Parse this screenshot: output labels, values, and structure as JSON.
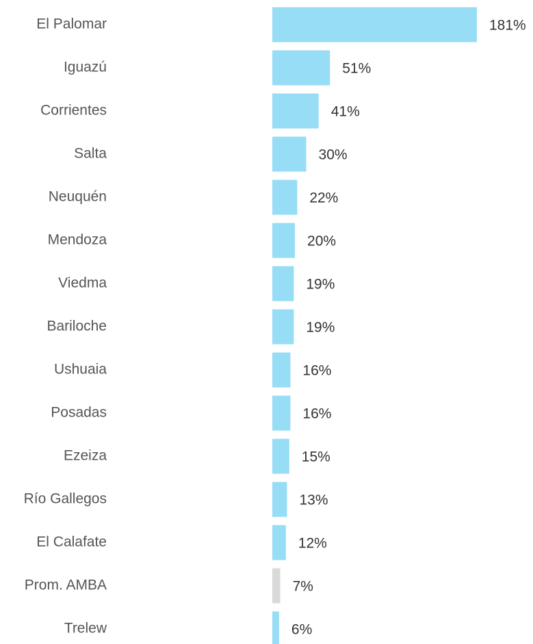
{
  "chart_data": {
    "type": "bar",
    "orientation": "horizontal",
    "categories": [
      "El Palomar",
      "Iguazú",
      "Corrientes",
      "Salta",
      "Neuquén",
      "Mendoza",
      "Viedma",
      "Bariloche",
      "Ushuaia",
      "Posadas",
      "Ezeiza",
      "Río Gallegos",
      "El Calafate",
      "Prom. AMBA",
      "Trelew"
    ],
    "values": [
      181,
      51,
      41,
      30,
      22,
      20,
      19,
      19,
      16,
      16,
      15,
      13,
      12,
      7,
      6
    ],
    "value_labels": [
      "181%",
      "51%",
      "41%",
      "30%",
      "22%",
      "20%",
      "19%",
      "19%",
      "16%",
      "16%",
      "15%",
      "13%",
      "12%",
      "7%",
      "6%"
    ],
    "colors": [
      "#97ddf6",
      "#97ddf6",
      "#97ddf6",
      "#97ddf6",
      "#97ddf6",
      "#97ddf6",
      "#97ddf6",
      "#97ddf6",
      "#97ddf6",
      "#97ddf6",
      "#97ddf6",
      "#97ddf6",
      "#97ddf6",
      "#d9d9d9",
      "#97ddf6"
    ]
  }
}
